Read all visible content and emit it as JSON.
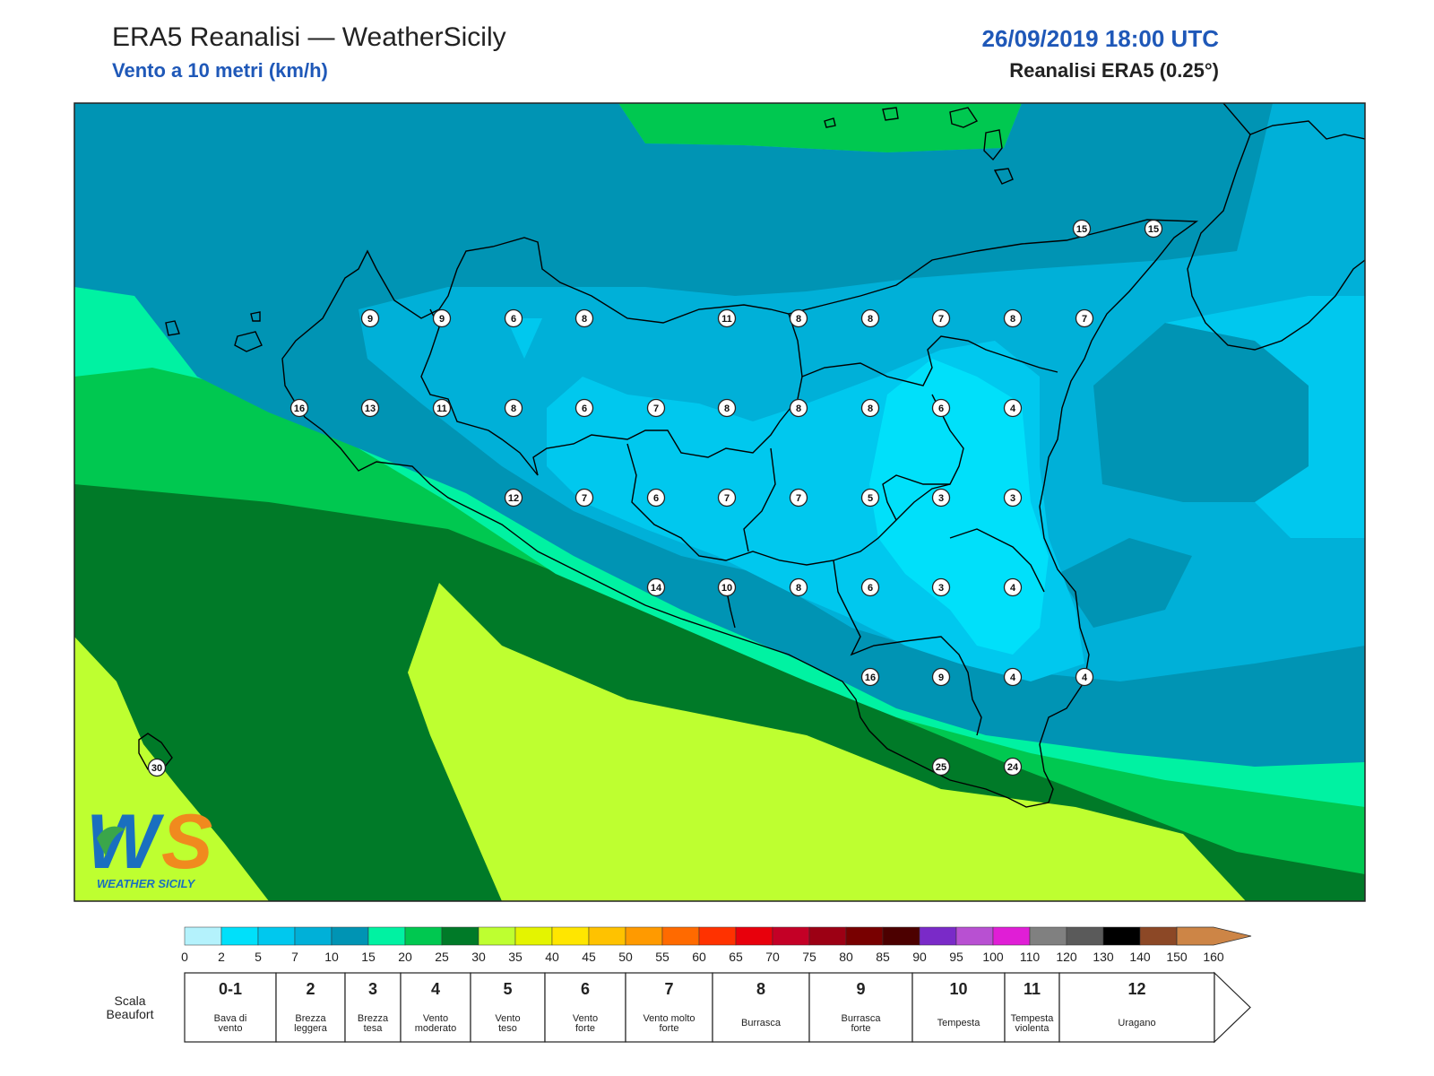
{
  "header": {
    "title": "ERA5 Reanalisi — WeatherSicily",
    "subtitle": "Vento a 10 metri (km/h)",
    "datetime": "26/09/2019 18:00 UTC",
    "source": "Reanalisi ERA5 (0.25°)"
  },
  "logo": {
    "text": "WS",
    "tagline": "WEATHER SICILY"
  },
  "stations": [
    {
      "v": "15"
    },
    {
      "v": "15"
    },
    {
      "v": "9"
    },
    {
      "v": "9"
    },
    {
      "v": "6"
    },
    {
      "v": "8"
    },
    {
      "v": "11"
    },
    {
      "v": "8"
    },
    {
      "v": "8"
    },
    {
      "v": "7"
    },
    {
      "v": "8"
    },
    {
      "v": "7"
    },
    {
      "v": "16"
    },
    {
      "v": "13"
    },
    {
      "v": "11"
    },
    {
      "v": "8"
    },
    {
      "v": "6"
    },
    {
      "v": "7"
    },
    {
      "v": "8"
    },
    {
      "v": "8"
    },
    {
      "v": "8"
    },
    {
      "v": "6"
    },
    {
      "v": "4"
    },
    {
      "v": "12"
    },
    {
      "v": "7"
    },
    {
      "v": "6"
    },
    {
      "v": "7"
    },
    {
      "v": "7"
    },
    {
      "v": "5"
    },
    {
      "v": "3"
    },
    {
      "v": "3"
    },
    {
      "v": "14"
    },
    {
      "v": "10"
    },
    {
      "v": "8"
    },
    {
      "v": "6"
    },
    {
      "v": "3"
    },
    {
      "v": "4"
    },
    {
      "v": "16"
    },
    {
      "v": "9"
    },
    {
      "v": "4"
    },
    {
      "v": "4"
    },
    {
      "v": "25"
    },
    {
      "v": "24"
    },
    {
      "v": "30"
    }
  ],
  "colorbar": {
    "colors": [
      "#b4f2fc",
      "#00e0fa",
      "#00c8ee",
      "#00b0d8",
      "#0094b4",
      "#00f2a2",
      "#00c850",
      "#007a28",
      "#beff30",
      "#e4f400",
      "#ffe600",
      "#ffc200",
      "#ff9a00",
      "#ff6a00",
      "#ff3200",
      "#e8000c",
      "#c40026",
      "#9c0014",
      "#780000",
      "#4c0000",
      "#7a2ac8",
      "#b850d2",
      "#e01ed6",
      "#808080",
      "#5a5a5a",
      "#000000",
      "#8c4826",
      "#cd8546"
    ],
    "ticks": [
      "0",
      "2",
      "5",
      "7",
      "10",
      "15",
      "20",
      "25",
      "30",
      "35",
      "40",
      "45",
      "50",
      "55",
      "60",
      "65",
      "70",
      "75",
      "80",
      "85",
      "90",
      "95",
      "100",
      "110",
      "120",
      "130",
      "140",
      "150",
      "160"
    ]
  },
  "beaufort": {
    "label": "Scala Beaufort",
    "classes": [
      {
        "n": "0-1",
        "d": "Bava di vento"
      },
      {
        "n": "2",
        "d": "Brezza leggera"
      },
      {
        "n": "3",
        "d": "Brezza tesa"
      },
      {
        "n": "4",
        "d": "Vento moderato"
      },
      {
        "n": "5",
        "d": "Vento teso"
      },
      {
        "n": "6",
        "d": "Vento forte"
      },
      {
        "n": "7",
        "d": "Vento molto forte"
      },
      {
        "n": "8",
        "d": "Burrasca"
      },
      {
        "n": "9",
        "d": "Burrasca forte"
      },
      {
        "n": "10",
        "d": "Tempesta"
      },
      {
        "n": "11",
        "d": "Tempesta violenta"
      },
      {
        "n": "12",
        "d": "Uragano"
      }
    ]
  }
}
